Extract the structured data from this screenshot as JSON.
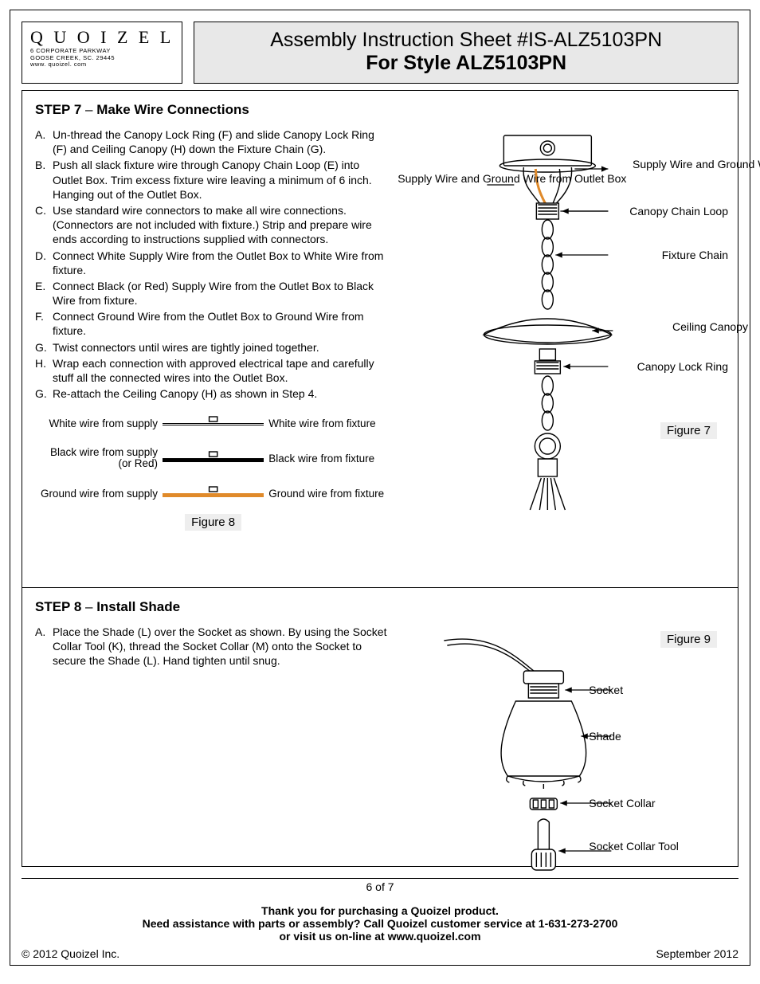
{
  "brand": {
    "name": "Q U O I Z E L",
    "addr1": "6 CORPORATE PARKWAY",
    "addr2": "GOOSE CREEK, SC. 29445",
    "site": "www. quoizel. com"
  },
  "title": {
    "line1": "Assembly Instruction Sheet #IS-ALZ5103PN",
    "line2": "For Style ALZ5103PN"
  },
  "step7": {
    "heading": "STEP 7",
    "dash": " – ",
    "title": "Make Wire Connections",
    "items": [
      {
        "l": "A.",
        "t": "Un-thread the Canopy Lock Ring (F) and slide Canopy Lock Ring (F) and Ceiling Canopy (H) down the Fixture Chain (G)."
      },
      {
        "l": "B.",
        "t": "Push all slack fixture wire through Canopy Chain Loop (E) into Outlet Box. Trim excess fixture wire leaving a minimum of 6 inch. Hanging out of the Outlet Box."
      },
      {
        "l": "C.",
        "t": "Use standard wire connectors to make all wire connections. (Connectors are not included with fixture.) Strip and prepare wire ends according to instructions supplied with connectors."
      },
      {
        "l": "D.",
        "t": "Connect White Supply Wire from the Outlet Box to White Wire from fixture."
      },
      {
        "l": "E.",
        "t": "Connect Black (or Red) Supply Wire from the Outlet Box to Black Wire from fixture."
      },
      {
        "l": "F.",
        "t": "Connect Ground Wire from the Outlet Box to Ground Wire from fixture."
      },
      {
        "l": "G.",
        "t": "Twist connectors until wires are tightly joined together."
      },
      {
        "l": "H.",
        "t": "Wrap each connection with approved electrical tape and carefully stuff all the connected wires into the Outlet Box."
      },
      {
        "l": "G.",
        "t": "Re-attach the Ceiling Canopy (H) as shown in Step 4."
      }
    ],
    "wires": {
      "left": [
        "White wire from supply",
        "Black wire from supply (or Red)",
        "Ground wire from supply"
      ],
      "right": [
        "White wire from fixture",
        "Black wire from fixture",
        "Ground wire from fixture"
      ]
    },
    "fig8": "Figure 8",
    "fig7": "Figure 7",
    "callouts": {
      "c1": "Supply Wire and Ground Wire from Outlet Box",
      "c2": "Supply Wire and Ground Wire",
      "c3": "Canopy Chain Loop",
      "c4": "Fixture Chain",
      "c5": "Ceiling Canopy",
      "c6": "Canopy Lock Ring"
    }
  },
  "step8": {
    "heading": "STEP 8",
    "dash": " – ",
    "title": "Install Shade",
    "items": [
      {
        "l": "A.",
        "t": "Place the Shade (L) over the Socket as shown. By using the Socket Collar Tool (K), thread the Socket Collar (M) onto the Socket to secure the Shade (L). Hand tighten until snug."
      }
    ],
    "fig9": "Figure 9",
    "callouts": {
      "d1": "Socket",
      "d2": "Shade",
      "d3": "Socket Collar",
      "d4": "Socket Collar Tool"
    }
  },
  "footer": {
    "thank": "Thank you for purchasing a Quoizel product.",
    "help": "Need assistance with parts or assembly? Call Quoizel customer service at 1-631-273-2700",
    "visit": "or visit us on-line at www.quoizel.com",
    "copyright": "© 2012  Quoizel Inc.",
    "date": "September 2012",
    "page": "6 of 7"
  },
  "style": {
    "orange": "#e08a2a",
    "grey_bg": "#e8e8e8"
  }
}
